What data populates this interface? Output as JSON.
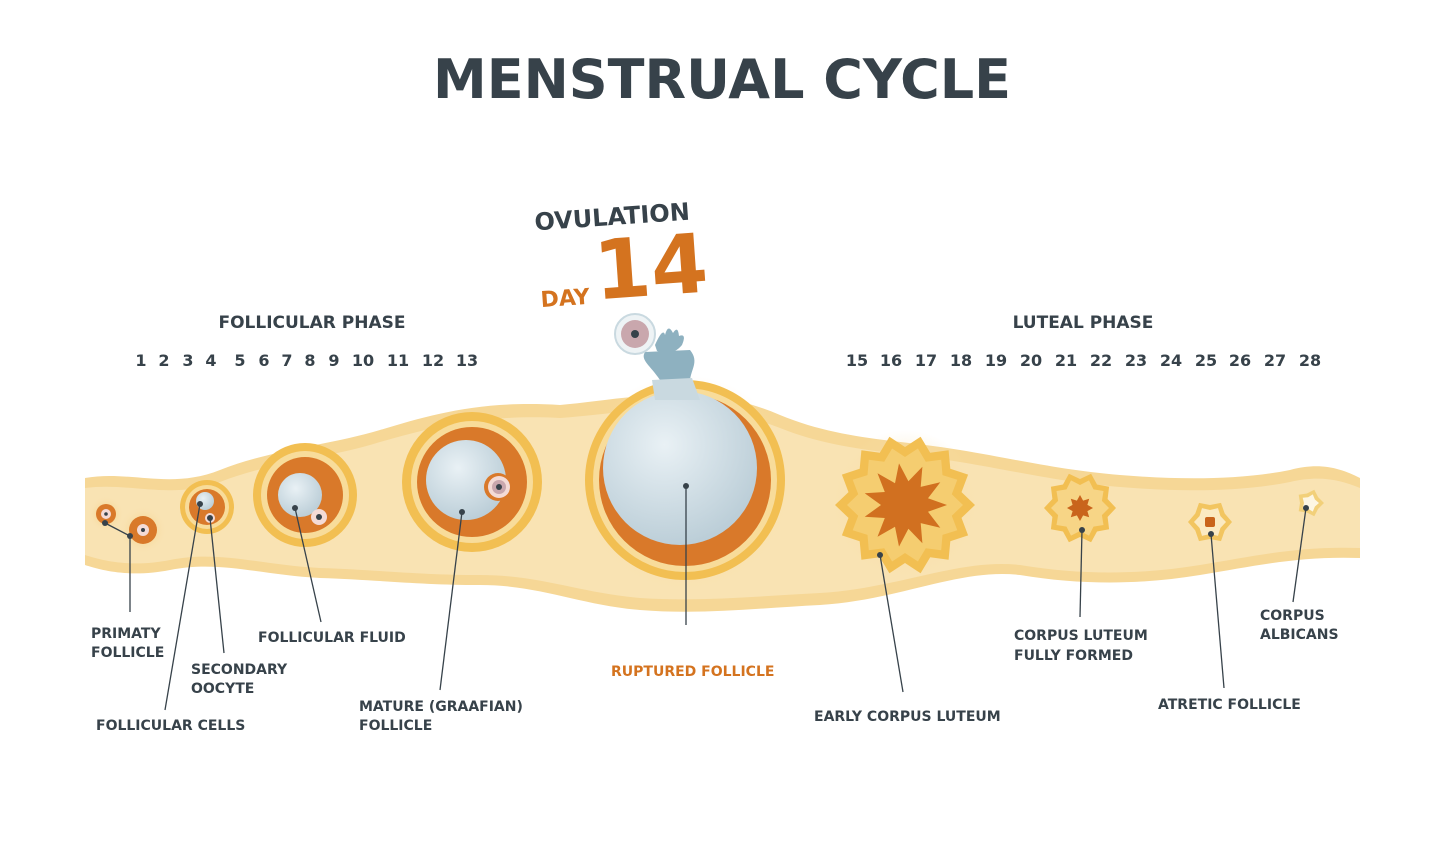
{
  "title": "MENSTRUAL CYCLE",
  "ovulation": {
    "word": "OVULATION",
    "day_word": "DAY",
    "day_number": "14"
  },
  "phases": {
    "follicular": "FOLLICULAR  PHASE",
    "luteal": "LUTEAL PHASE"
  },
  "days_follicular": [
    "1",
    "2",
    "3",
    "4",
    "5",
    "6",
    "7",
    "8",
    "9",
    "10",
    "11",
    "12",
    "13"
  ],
  "days_luteal": [
    "15",
    "16",
    "17",
    "18",
    "19",
    "20",
    "21",
    "22",
    "23",
    "24",
    "25",
    "26",
    "27",
    "28"
  ],
  "labels": {
    "primary_follicle": [
      "PRIMATY",
      "FOLLICLE"
    ],
    "follicular_cells": "FOLLICULAR CELLS",
    "secondary_oocyte": [
      "SECONDARY",
      "OOCYTE"
    ],
    "follicular_fluid": "FOLLICULAR FLUID",
    "mature_follicle": [
      "MATURE (GRAAFIAN)",
      "FOLLICLE"
    ],
    "ruptured_follicle": "RUPTURED FOLLICLE",
    "early_corpus_luteum": "EARLY CORPUS LUTEUM",
    "corpus_luteum_formed": [
      "CORPUS LUTEUM",
      "FULLY FORMED"
    ],
    "atretic_follicle": "ATRETIC FOLLICLE",
    "corpus_albicans": [
      "CORPUS",
      "ALBICANS"
    ]
  },
  "colors": {
    "text": "#37424a",
    "accent": "#d4731f",
    "band": "#f9e3b3",
    "follicle": "#d9792a",
    "fluid": "#d5e4ec"
  }
}
